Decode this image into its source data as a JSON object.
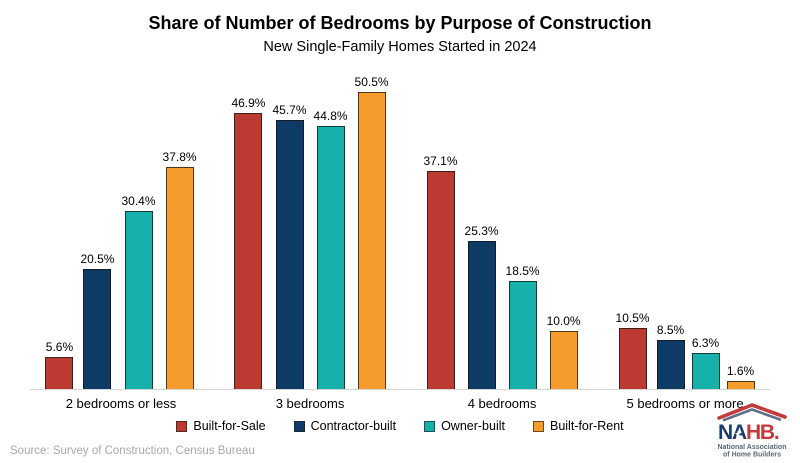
{
  "header": {
    "title": "Share of Number of Bedrooms by Purpose of Construction",
    "subtitle": "New Single-Family Homes Started in 2024"
  },
  "chart_data": {
    "type": "bar",
    "title": "Share of Number of Bedrooms by Purpose of Construction",
    "subtitle": "New Single-Family Homes Started in 2024",
    "categories": [
      "2 bedrooms or less",
      "3 bedrooms",
      "4 bedrooms",
      "5 bedrooms or more"
    ],
    "series": [
      {
        "name": "Built-for-Sale",
        "color": "#BB3B33",
        "values": [
          5.6,
          46.9,
          37.1,
          10.5
        ]
      },
      {
        "name": "Contractor-built",
        "color": "#0E3A66",
        "values": [
          20.5,
          45.7,
          25.3,
          8.5
        ]
      },
      {
        "name": "Owner-built",
        "color": "#16B1AA",
        "values": [
          30.4,
          44.8,
          18.5,
          6.3
        ]
      },
      {
        "name": "Built-for-Rent",
        "color": "#F69C2D",
        "values": [
          37.8,
          50.5,
          10.0,
          1.6
        ]
      }
    ],
    "value_suffix": "%",
    "data_labels": true,
    "ylim": [
      0,
      55
    ],
    "grid": false,
    "legend_position": "bottom",
    "axis_line_color": "#d6d6d6"
  },
  "footer": {
    "source": "Source: Survey of Construction, Census Bureau"
  },
  "logo": {
    "wordmark_left": "NA",
    "wordmark_right": "HB",
    "wordmark_period": ".",
    "star": "★",
    "caption_line1": "National Association",
    "caption_line2": "of Home Builders",
    "navy": "#1E3A6D",
    "red": "#C23B3B",
    "slate": "#5B6770"
  }
}
